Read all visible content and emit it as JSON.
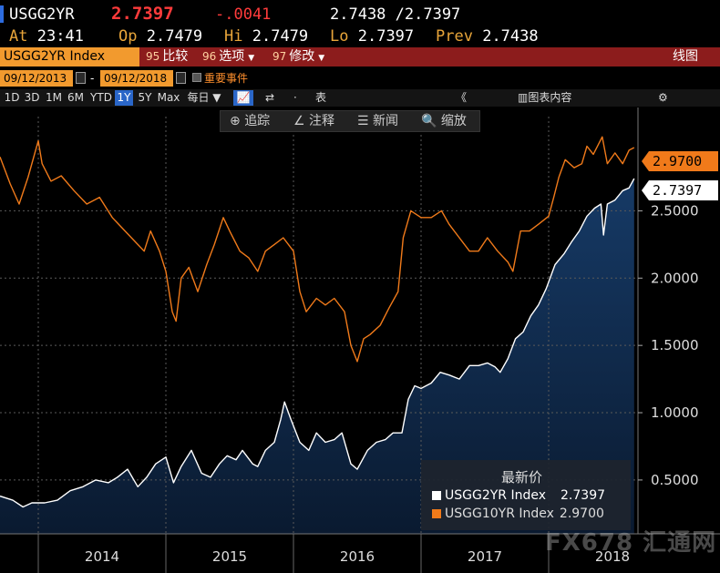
{
  "quote": {
    "ticker": "USGG2YR",
    "last": "2.7397",
    "change": "-.0041",
    "hilo": "2.7438 /2.7397",
    "at_label": "At",
    "at_value": "23:41",
    "op_label": "Op",
    "op_value": "2.7479",
    "hi_label": "Hi",
    "hi_value": "2.7479",
    "lo_label": "Lo",
    "lo_value": "2.7397",
    "prev_label": "Prev",
    "prev_value": "2.7438"
  },
  "toolbar": {
    "security": "USGG2YR Index",
    "compare_num": "95",
    "compare_label": "比较",
    "options_num": "96",
    "options_label": "选项",
    "edit_num": "97",
    "edit_label": "修改",
    "right_label": "线图"
  },
  "dates": {
    "start": "09/12/2013",
    "sep": "-",
    "end": "09/12/2018",
    "events_label": "重要事件"
  },
  "ranges": [
    "1D",
    "3D",
    "1M",
    "6M",
    "YTD",
    "1Y",
    "5Y",
    "Max"
  ],
  "selected_range": "1Y",
  "period": "每日",
  "table_label": "表",
  "chart_content_label": "图表内容",
  "annotations": {
    "track": "追踪",
    "note": "注释",
    "news": "新闻",
    "zoom": "缩放"
  },
  "legend": {
    "title": "最新价",
    "series": [
      {
        "name": "USGG2YR Index",
        "value": "2.7397",
        "color": "#ffffff"
      },
      {
        "name": "USGG10YR Index",
        "value": "2.9700",
        "color": "#f07a1a"
      }
    ]
  },
  "tags": {
    "ten_year": "2.9700",
    "two_year": "2.7397"
  },
  "watermark": "FX678 汇通网",
  "colors": {
    "accent_red": "#8c1c1c",
    "orange": "#f07a1a",
    "field_orange": "#f29a2e",
    "area_fill": "#0d2340"
  },
  "chart_data": {
    "type": "line",
    "x_unit": "year",
    "xlim": [
      2013.7,
      2018.7
    ],
    "ylim": [
      0.1,
      3.2
    ],
    "yticks": [
      "0.5000",
      "1.0000",
      "1.5000",
      "2.0000",
      "2.5000"
    ],
    "xticks": [
      "2014",
      "2015",
      "2016",
      "2017",
      "2018"
    ],
    "grid": true,
    "legend_position": "bottom-right",
    "series": [
      {
        "name": "USGG10YR Index",
        "style": "line",
        "color": "#f07a1a",
        "points": [
          [
            2013.7,
            2.9
          ],
          [
            2013.78,
            2.7
          ],
          [
            2013.85,
            2.55
          ],
          [
            2013.92,
            2.75
          ],
          [
            2014.0,
            3.02
          ],
          [
            2014.03,
            2.85
          ],
          [
            2014.1,
            2.72
          ],
          [
            2014.18,
            2.76
          ],
          [
            2014.28,
            2.65
          ],
          [
            2014.38,
            2.55
          ],
          [
            2014.48,
            2.6
          ],
          [
            2014.58,
            2.45
          ],
          [
            2014.68,
            2.35
          ],
          [
            2014.78,
            2.25
          ],
          [
            2014.83,
            2.2
          ],
          [
            2014.88,
            2.35
          ],
          [
            2014.95,
            2.2
          ],
          [
            2015.0,
            2.05
          ],
          [
            2015.05,
            1.75
          ],
          [
            2015.08,
            1.68
          ],
          [
            2015.12,
            2.0
          ],
          [
            2015.18,
            2.08
          ],
          [
            2015.25,
            1.9
          ],
          [
            2015.32,
            2.1
          ],
          [
            2015.38,
            2.25
          ],
          [
            2015.45,
            2.45
          ],
          [
            2015.5,
            2.35
          ],
          [
            2015.58,
            2.2
          ],
          [
            2015.65,
            2.15
          ],
          [
            2015.72,
            2.05
          ],
          [
            2015.78,
            2.2
          ],
          [
            2015.85,
            2.25
          ],
          [
            2015.92,
            2.3
          ],
          [
            2016.0,
            2.2
          ],
          [
            2016.05,
            1.9
          ],
          [
            2016.1,
            1.75
          ],
          [
            2016.18,
            1.85
          ],
          [
            2016.25,
            1.8
          ],
          [
            2016.32,
            1.85
          ],
          [
            2016.4,
            1.75
          ],
          [
            2016.45,
            1.5
          ],
          [
            2016.5,
            1.38
          ],
          [
            2016.55,
            1.55
          ],
          [
            2016.6,
            1.58
          ],
          [
            2016.68,
            1.65
          ],
          [
            2016.75,
            1.78
          ],
          [
            2016.82,
            1.9
          ],
          [
            2016.86,
            2.3
          ],
          [
            2016.92,
            2.5
          ],
          [
            2017.0,
            2.45
          ],
          [
            2017.08,
            2.45
          ],
          [
            2017.16,
            2.5
          ],
          [
            2017.22,
            2.4
          ],
          [
            2017.3,
            2.3
          ],
          [
            2017.38,
            2.2
          ],
          [
            2017.45,
            2.2
          ],
          [
            2017.52,
            2.3
          ],
          [
            2017.6,
            2.2
          ],
          [
            2017.68,
            2.12
          ],
          [
            2017.72,
            2.05
          ],
          [
            2017.78,
            2.35
          ],
          [
            2017.85,
            2.35
          ],
          [
            2017.92,
            2.4
          ],
          [
            2018.0,
            2.46
          ],
          [
            2018.04,
            2.6
          ],
          [
            2018.08,
            2.75
          ],
          [
            2018.13,
            2.88
          ],
          [
            2018.2,
            2.82
          ],
          [
            2018.26,
            2.85
          ],
          [
            2018.3,
            2.98
          ],
          [
            2018.35,
            2.92
          ],
          [
            2018.42,
            3.05
          ],
          [
            2018.46,
            2.85
          ],
          [
            2018.52,
            2.93
          ],
          [
            2018.58,
            2.85
          ],
          [
            2018.63,
            2.95
          ],
          [
            2018.67,
            2.97
          ]
        ]
      },
      {
        "name": "USGG2YR Index",
        "style": "area",
        "color": "#ffffff",
        "points": [
          [
            2013.7,
            0.38
          ],
          [
            2013.8,
            0.35
          ],
          [
            2013.88,
            0.3
          ],
          [
            2013.95,
            0.33
          ],
          [
            2014.05,
            0.33
          ],
          [
            2014.15,
            0.35
          ],
          [
            2014.25,
            0.42
          ],
          [
            2014.35,
            0.45
          ],
          [
            2014.45,
            0.5
          ],
          [
            2014.55,
            0.48
          ],
          [
            2014.62,
            0.52
          ],
          [
            2014.7,
            0.58
          ],
          [
            2014.78,
            0.45
          ],
          [
            2014.85,
            0.52
          ],
          [
            2014.92,
            0.62
          ],
          [
            2015.0,
            0.67
          ],
          [
            2015.06,
            0.48
          ],
          [
            2015.12,
            0.6
          ],
          [
            2015.2,
            0.72
          ],
          [
            2015.28,
            0.55
          ],
          [
            2015.35,
            0.52
          ],
          [
            2015.42,
            0.62
          ],
          [
            2015.48,
            0.68
          ],
          [
            2015.55,
            0.65
          ],
          [
            2015.6,
            0.72
          ],
          [
            2015.68,
            0.62
          ],
          [
            2015.72,
            0.6
          ],
          [
            2015.78,
            0.72
          ],
          [
            2015.85,
            0.78
          ],
          [
            2015.9,
            0.95
          ],
          [
            2015.93,
            1.08
          ],
          [
            2015.98,
            0.95
          ],
          [
            2016.05,
            0.78
          ],
          [
            2016.12,
            0.72
          ],
          [
            2016.18,
            0.85
          ],
          [
            2016.25,
            0.78
          ],
          [
            2016.32,
            0.8
          ],
          [
            2016.38,
            0.85
          ],
          [
            2016.45,
            0.62
          ],
          [
            2016.5,
            0.58
          ],
          [
            2016.58,
            0.72
          ],
          [
            2016.65,
            0.78
          ],
          [
            2016.72,
            0.8
          ],
          [
            2016.78,
            0.85
          ],
          [
            2016.85,
            0.85
          ],
          [
            2016.9,
            1.1
          ],
          [
            2016.95,
            1.2
          ],
          [
            2017.0,
            1.18
          ],
          [
            2017.08,
            1.22
          ],
          [
            2017.15,
            1.3
          ],
          [
            2017.22,
            1.28
          ],
          [
            2017.3,
            1.25
          ],
          [
            2017.38,
            1.35
          ],
          [
            2017.45,
            1.35
          ],
          [
            2017.52,
            1.37
          ],
          [
            2017.58,
            1.34
          ],
          [
            2017.62,
            1.3
          ],
          [
            2017.68,
            1.4
          ],
          [
            2017.74,
            1.55
          ],
          [
            2017.8,
            1.6
          ],
          [
            2017.86,
            1.72
          ],
          [
            2017.92,
            1.8
          ],
          [
            2017.98,
            1.92
          ],
          [
            2018.05,
            2.1
          ],
          [
            2018.12,
            2.18
          ],
          [
            2018.18,
            2.27
          ],
          [
            2018.24,
            2.35
          ],
          [
            2018.3,
            2.46
          ],
          [
            2018.36,
            2.52
          ],
          [
            2018.41,
            2.55
          ],
          [
            2018.43,
            2.32
          ],
          [
            2018.46,
            2.55
          ],
          [
            2018.52,
            2.58
          ],
          [
            2018.58,
            2.65
          ],
          [
            2018.63,
            2.67
          ],
          [
            2018.67,
            2.74
          ]
        ]
      }
    ]
  }
}
